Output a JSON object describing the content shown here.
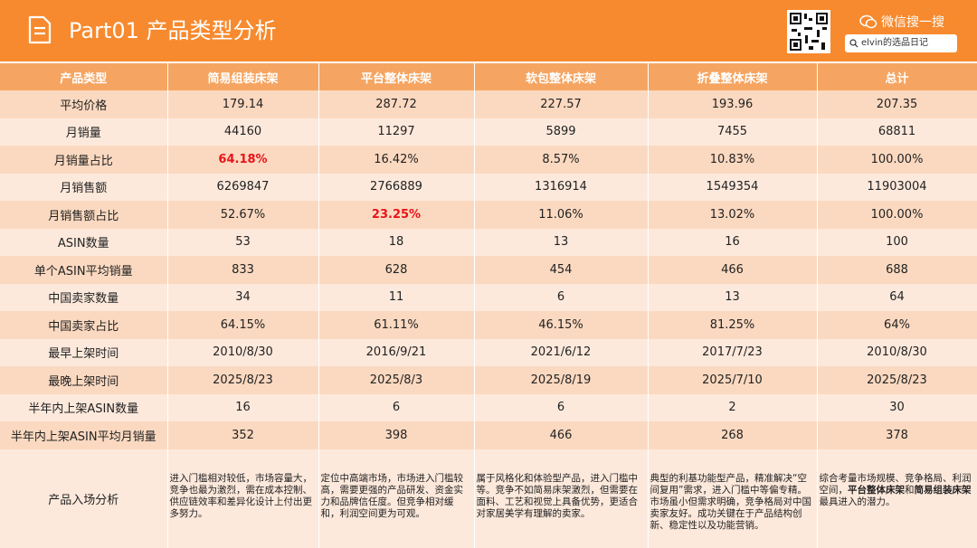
{
  "header": {
    "title": "Part01 产品类型分析",
    "search_label": "微信搜一搜",
    "search_text": "elvin的选品日记"
  },
  "table": {
    "columns": [
      "产品类型",
      "简易组装床架",
      "平台整体床架",
      "软包整体床架",
      "折叠整体床架",
      "总计"
    ],
    "rows": [
      [
        "平均价格",
        "179.14",
        "287.72",
        "227.57",
        "193.96",
        "207.35"
      ],
      [
        "月销量",
        "44160",
        "11297",
        "5899",
        "7455",
        "68811"
      ],
      [
        "月销量占比",
        "64.18%",
        "16.42%",
        "8.57%",
        "10.83%",
        "100.00%"
      ],
      [
        "月销售额",
        "6269847",
        "2766889",
        "1316914",
        "1549354",
        "11903004"
      ],
      [
        "月销售额占比",
        "52.67%",
        "23.25%",
        "11.06%",
        "13.02%",
        "100.00%"
      ],
      [
        "ASIN数量",
        "53",
        "18",
        "13",
        "16",
        "100"
      ],
      [
        "单个ASIN平均销量",
        "833",
        "628",
        "454",
        "466",
        "688"
      ],
      [
        "中国卖家数量",
        "34",
        "11",
        "6",
        "13",
        "64"
      ],
      [
        "中国卖家占比",
        "64.15%",
        "61.11%",
        "46.15%",
        "81.25%",
        "64%"
      ],
      [
        "最早上架时间",
        "2010/8/30",
        "2016/9/21",
        "2021/6/12",
        "2017/7/23",
        "2010/8/30"
      ],
      [
        "最晚上架时间",
        "2025/8/23",
        "2025/8/3",
        "2025/8/19",
        "2025/7/10",
        "2025/8/23"
      ],
      [
        "半年内上架ASIN数量",
        "16",
        "6",
        "6",
        "2",
        "30"
      ],
      [
        "半年内上架ASIN平均月销量",
        "352",
        "398",
        "466",
        "268",
        "378"
      ]
    ],
    "analysis": {
      "label": "产品入场分析",
      "cells": [
        [
          "进入门槛相对较低，市场容量大，竞争也最为激烈，需在成本控制、供应链效率和差异化设计上付出更多努力。"
        ],
        [
          "定位中高端市场，市场进入门槛较高，需要更强的产品研发、资金实力和品牌信任度。但竞争相对缓和，利润空间更为可观。"
        ],
        [
          "属于风格化和体验型产品，进入门槛中等。竞争不如简易床架激烈，但需要在面料、工艺和视觉上具备优势，更适合对家居美学有理解的卖家。"
        ],
        [
          "典型的利基功能型产品，精准解决“空间复用”需求，进入门槛中等偏专精。市场虽小但需求明确，竞争格局对中国卖家友好。成功关键在于产品结构创新、稳定性以及功能营销。"
        ],
        [
          "综合考量市场规模、竞争格局、利润空间，",
          "平台整体床架",
          "和",
          "简易组装床架",
          "最具进入的潜力。"
        ]
      ]
    }
  }
}
